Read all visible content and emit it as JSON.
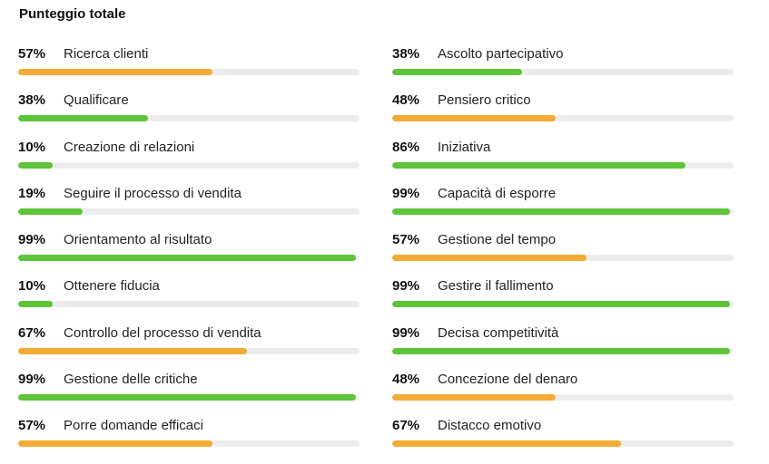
{
  "header": {
    "title": "Punteggio totale"
  },
  "colors": {
    "high": "#5ec43a",
    "medium": "#f3ab35",
    "track": "#ececec"
  },
  "chart_data": {
    "type": "bar",
    "orientation": "horizontal",
    "value_range": [
      0,
      100
    ],
    "title": "Punteggio totale",
    "columns": [
      [
        {
          "label": "Ricerca clienti",
          "value": 57,
          "value_text": "57%",
          "color": "#f3ab35"
        },
        {
          "label": "Qualificare",
          "value": 38,
          "value_text": "38%",
          "color": "#5ec43a"
        },
        {
          "label": "Creazione di relazioni",
          "value": 10,
          "value_text": "10%",
          "color": "#5ec43a"
        },
        {
          "label": "Seguire il processo di vendita",
          "value": 19,
          "value_text": "19%",
          "color": "#5ec43a"
        },
        {
          "label": "Orientamento al risultato",
          "value": 99,
          "value_text": "99%",
          "color": "#5ec43a"
        },
        {
          "label": "Ottenere fiducia",
          "value": 10,
          "value_text": "10%",
          "color": "#5ec43a"
        },
        {
          "label": "Controllo del processo di vendita",
          "value": 67,
          "value_text": "67%",
          "color": "#f3ab35"
        },
        {
          "label": "Gestione delle critiche",
          "value": 99,
          "value_text": "99%",
          "color": "#5ec43a"
        },
        {
          "label": "Porre domande efficaci",
          "value": 57,
          "value_text": "57%",
          "color": "#f3ab35"
        }
      ],
      [
        {
          "label": "Ascolto partecipativo",
          "value": 38,
          "value_text": "38%",
          "color": "#5ec43a"
        },
        {
          "label": "Pensiero critico",
          "value": 48,
          "value_text": "48%",
          "color": "#f3ab35"
        },
        {
          "label": "Iniziativa",
          "value": 86,
          "value_text": "86%",
          "color": "#5ec43a"
        },
        {
          "label": "Capacità di esporre",
          "value": 99,
          "value_text": "99%",
          "color": "#5ec43a"
        },
        {
          "label": "Gestione del tempo",
          "value": 57,
          "value_text": "57%",
          "color": "#f3ab35"
        },
        {
          "label": "Gestire il fallimento",
          "value": 99,
          "value_text": "99%",
          "color": "#5ec43a"
        },
        {
          "label": "Decisa competitività",
          "value": 99,
          "value_text": "99%",
          "color": "#5ec43a"
        },
        {
          "label": "Concezione del denaro",
          "value": 48,
          "value_text": "48%",
          "color": "#f3ab35"
        },
        {
          "label": "Distacco emotivo",
          "value": 67,
          "value_text": "67%",
          "color": "#f3ab35"
        }
      ]
    ]
  }
}
